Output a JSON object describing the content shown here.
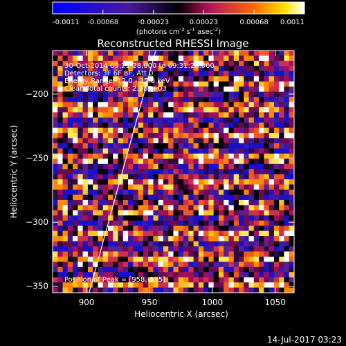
{
  "chart_data": {
    "type": "heatmap",
    "title": "Reconstructed RHESSI Image",
    "xlabel": "Heliocentric X (arcsec)",
    "ylabel": "Heliocentric Y (arcsec)",
    "xlim": [
      873,
      1065
    ],
    "ylim": [
      -355,
      -166
    ],
    "x_ticks": [
      900,
      950,
      1000,
      1050
    ],
    "y_ticks": [
      -200,
      -250,
      -300,
      -350
    ],
    "colorbar": {
      "range": [
        -0.0011,
        0.0011
      ],
      "tick_labels": [
        "-0.0011",
        "-0.00068",
        "-0.00023",
        "0.00023",
        "0.00068",
        "0.0011"
      ],
      "label_prefix": "(photons cm",
      "label_exp1": "-2",
      "label_mid": " s",
      "label_exp2": "-1",
      "label_mid2": " asec",
      "label_exp3": "-2",
      "label_suffix": ")"
    },
    "annotations": {
      "time": "30-Oct-2014 09:21:28.000 to 09:31:28.000",
      "detectors": "Detectors: 3F 6F 8F, Att 0",
      "energy": "Energy Range: 12.0 - 25.0 keV",
      "clean": "Clean     Total counts: 2.70E+03",
      "peak": "Position of Peak = [958,-335]"
    },
    "limb_line": {
      "x": [
        902,
        955
      ],
      "y": [
        -355,
        -166
      ]
    },
    "grid": {
      "nx": 48,
      "ny": 47,
      "seed": 17
    }
  },
  "footer": {
    "date": "14-Jul-2017 03:23"
  }
}
